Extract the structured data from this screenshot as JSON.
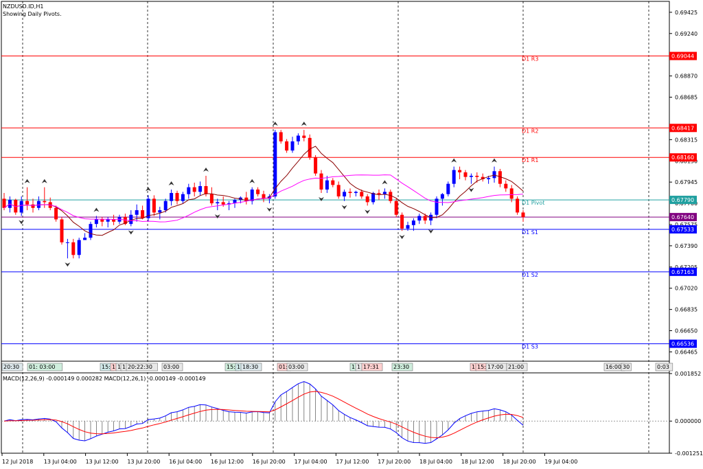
{
  "header": {
    "symbol": "NZDUSD.ID,H1",
    "subtitle": "Showing Daily Pivots."
  },
  "price_axis": {
    "ticks": [
      "0.69425",
      "0.69240",
      "0.68870",
      "0.68685",
      "0.68315",
      "0.68130",
      "0.67945",
      "0.67760",
      "0.67575",
      "0.67390",
      "0.67205",
      "0.67020",
      "0.66835",
      "0.66650",
      "0.66465"
    ]
  },
  "pivots": [
    {
      "label": "D1 R3",
      "value": "0.69044",
      "color": "#ff0000"
    },
    {
      "label": "D1 R2",
      "value": "0.68417",
      "color": "#ff0000"
    },
    {
      "label": "D1 R1",
      "value": "0.68160",
      "color": "#ff0000"
    },
    {
      "label": "D1 Pivot",
      "value": "0.67790",
      "color": "#20a0a0"
    },
    {
      "label": "D1 S1",
      "value": "0.67533",
      "color": "#0000ff"
    },
    {
      "label": "D1 S2",
      "value": "0.67163",
      "color": "#0000ff"
    },
    {
      "label": "D1 S3",
      "value": "0.66536",
      "color": "#0000ff"
    }
  ],
  "current_price": {
    "value": "0.67640",
    "color": "#800080"
  },
  "session_tags": [
    {
      "text": "20:30",
      "bg": "#dde8ec"
    },
    {
      "text": "01: 03:00",
      "bg": "#cfeedd"
    },
    {
      "text": "15:",
      "bg": "#cfe8e8"
    },
    {
      "text": "1",
      "bg": "#ffd0d0"
    },
    {
      "text": "1",
      "bg": "#e8e8e8"
    },
    {
      "text": "1",
      "bg": "#e8e8e8"
    },
    {
      "text": "20:22:30",
      "bg": "#e8e8e8"
    },
    {
      "text": "03:00",
      "bg": "#e8e8e8"
    },
    {
      "text": "15:",
      "bg": "#cfeedd"
    },
    {
      "text": "1",
      "bg": "#cfe8e8"
    },
    {
      "text": "18:30",
      "bg": "#dde8ec"
    },
    {
      "text": "01:",
      "bg": "#ffd0d0"
    },
    {
      "text": "03:00",
      "bg": "#e8e8e8"
    },
    {
      "text": "1",
      "bg": "#cfeedd"
    },
    {
      "text": "1",
      "bg": "#e8e8e8"
    },
    {
      "text": "17:31",
      "bg": "#ffd0d0"
    },
    {
      "text": "23:30",
      "bg": "#cfeedd"
    },
    {
      "text": "1",
      "bg": "#ffd0d0"
    },
    {
      "text": "15:",
      "bg": "#ffd0d0"
    },
    {
      "text": "17:00",
      "bg": "#e8e8e8"
    },
    {
      "text": "21:00",
      "bg": "#e8e8e8"
    },
    {
      "text": "16:00",
      "bg": "#e8e8e8"
    },
    {
      "text": "30",
      "bg": "#e8e8e8"
    },
    {
      "text": "0:03",
      "bg": "#e8e8e8"
    }
  ],
  "macd": {
    "label": "MACD(12,26,9) -0.000149 0.000282 MACD(12,26,1) -0.000149 -0.000149",
    "axis_ticks": [
      "0.001852",
      "0.000000",
      "-0.001251"
    ]
  },
  "time_axis": {
    "labels": [
      "12 Jul 2018",
      "13 Jul 04:00",
      "13 Jul 12:00",
      "13 Jul 20:00",
      "16 Jul 04:00",
      "16 Jul 12:00",
      "16 Jul 20:00",
      "17 Jul 04:00",
      "17 Jul 12:00",
      "17 Jul 20:00",
      "18 Jul 04:00",
      "18 Jul 12:00",
      "18 Jul 20:00",
      "19 Jul 04:00"
    ]
  },
  "colors": {
    "bull": "#0000ff",
    "bear": "#ff0000",
    "ma_fast": "#8b0000",
    "ma_slow": "#ff00ff",
    "macd_line": "#0000ff",
    "signal_line": "#ff0000",
    "grid": "#000000"
  },
  "chart_data": {
    "type": "candlestick",
    "x": [
      "12 Jul 2018",
      "13 Jul 04:00",
      "13 Jul 12:00",
      "13 Jul 20:00",
      "16 Jul 04:00",
      "16 Jul 12:00",
      "16 Jul 20:00",
      "17 Jul 04:00",
      "17 Jul 12:00",
      "17 Jul 20:00",
      "18 Jul 04:00",
      "18 Jul 12:00",
      "18 Jul 20:00",
      "19 Jul 04:00"
    ],
    "ylim": [
      0.6639,
      0.6952
    ],
    "candles": [
      [
        0.678,
        0.6785,
        0.677,
        0.6772
      ],
      [
        0.6772,
        0.6782,
        0.6768,
        0.6779
      ],
      [
        0.6779,
        0.678,
        0.6766,
        0.6768
      ],
      [
        0.6768,
        0.6782,
        0.6765,
        0.6778
      ],
      [
        0.6778,
        0.679,
        0.677,
        0.6775
      ],
      [
        0.6775,
        0.678,
        0.6768,
        0.6772
      ],
      [
        0.6772,
        0.6782,
        0.677,
        0.6778
      ],
      [
        0.6778,
        0.679,
        0.6772,
        0.6777
      ],
      [
        0.6777,
        0.6781,
        0.677,
        0.6772
      ],
      [
        0.6772,
        0.6774,
        0.676,
        0.6762
      ],
      [
        0.6762,
        0.6764,
        0.674,
        0.6742
      ],
      [
        0.6742,
        0.6745,
        0.6728,
        0.6742
      ],
      [
        0.6742,
        0.6745,
        0.6728,
        0.6731
      ],
      [
        0.6731,
        0.6746,
        0.6728,
        0.6744
      ],
      [
        0.6744,
        0.675,
        0.6745,
        0.6746
      ],
      [
        0.6746,
        0.676,
        0.6744,
        0.6758
      ],
      [
        0.6758,
        0.6765,
        0.6755,
        0.6762
      ],
      [
        0.6762,
        0.6764,
        0.6756,
        0.676
      ],
      [
        0.676,
        0.6764,
        0.6755,
        0.6762
      ],
      [
        0.6762,
        0.6766,
        0.6757,
        0.676
      ],
      [
        0.676,
        0.6766,
        0.6758,
        0.6764
      ],
      [
        0.6764,
        0.6767,
        0.6757,
        0.6758
      ],
      [
        0.6758,
        0.677,
        0.6756,
        0.6766
      ],
      [
        0.6766,
        0.6775,
        0.676,
        0.677
      ],
      [
        0.677,
        0.6774,
        0.6762,
        0.6763
      ],
      [
        0.6763,
        0.6783,
        0.676,
        0.678
      ],
      [
        0.678,
        0.6783,
        0.6765,
        0.6768
      ],
      [
        0.6768,
        0.6773,
        0.6762,
        0.677
      ],
      [
        0.677,
        0.678,
        0.6768,
        0.6778
      ],
      [
        0.6778,
        0.6788,
        0.6774,
        0.6785
      ],
      [
        0.6785,
        0.6787,
        0.6775,
        0.6778
      ],
      [
        0.6778,
        0.6786,
        0.6776,
        0.6784
      ],
      [
        0.6784,
        0.6793,
        0.678,
        0.679
      ],
      [
        0.679,
        0.6794,
        0.6782,
        0.6786
      ],
      [
        0.6786,
        0.6795,
        0.6783,
        0.6791
      ],
      [
        0.6791,
        0.68,
        0.6782,
        0.6784
      ],
      [
        0.6784,
        0.679,
        0.6774,
        0.6776
      ],
      [
        0.6776,
        0.678,
        0.677,
        0.6777
      ],
      [
        0.6777,
        0.6782,
        0.6773,
        0.6775
      ],
      [
        0.6775,
        0.6778,
        0.677,
        0.6776
      ],
      [
        0.6776,
        0.678,
        0.6772,
        0.6779
      ],
      [
        0.6779,
        0.6782,
        0.6776,
        0.6781
      ],
      [
        0.6781,
        0.6786,
        0.6775,
        0.6778
      ],
      [
        0.6778,
        0.679,
        0.6775,
        0.6788
      ],
      [
        0.6788,
        0.679,
        0.6782,
        0.6784
      ],
      [
        0.6784,
        0.6787,
        0.6777,
        0.678
      ],
      [
        0.678,
        0.6784,
        0.6776,
        0.6782
      ],
      [
        0.6782,
        0.684,
        0.678,
        0.6838
      ],
      [
        0.6838,
        0.684,
        0.6828,
        0.683
      ],
      [
        0.683,
        0.6832,
        0.682,
        0.6822
      ],
      [
        0.6822,
        0.6834,
        0.682,
        0.683
      ],
      [
        0.683,
        0.6837,
        0.6827,
        0.6835
      ],
      [
        0.6835,
        0.684,
        0.683,
        0.6833
      ],
      [
        0.6833,
        0.6836,
        0.6814,
        0.6816
      ],
      [
        0.6816,
        0.6818,
        0.68,
        0.6802
      ],
      [
        0.6802,
        0.6805,
        0.6785,
        0.6788
      ],
      [
        0.6788,
        0.68,
        0.6785,
        0.6796
      ],
      [
        0.6796,
        0.6798,
        0.679,
        0.6792
      ],
      [
        0.6792,
        0.6795,
        0.678,
        0.6782
      ],
      [
        0.6782,
        0.6788,
        0.6778,
        0.6786
      ],
      [
        0.6786,
        0.6789,
        0.6781,
        0.6785
      ],
      [
        0.6785,
        0.6787,
        0.6782,
        0.6786
      ],
      [
        0.6786,
        0.6788,
        0.678,
        0.6782
      ],
      [
        0.6782,
        0.6784,
        0.6774,
        0.6777
      ],
      [
        0.6777,
        0.6786,
        0.6775,
        0.6785
      ],
      [
        0.6785,
        0.6788,
        0.6779,
        0.6784
      ],
      [
        0.6784,
        0.6789,
        0.678,
        0.6786
      ],
      [
        0.6786,
        0.6788,
        0.6776,
        0.6778
      ],
      [
        0.6778,
        0.678,
        0.6764,
        0.6766
      ],
      [
        0.6766,
        0.6768,
        0.6752,
        0.6754
      ],
      [
        0.6754,
        0.676,
        0.6752,
        0.6757
      ],
      [
        0.6757,
        0.6763,
        0.6752,
        0.6761
      ],
      [
        0.6761,
        0.6767,
        0.6758,
        0.6765
      ],
      [
        0.6765,
        0.6767,
        0.6758,
        0.6761
      ],
      [
        0.6761,
        0.6768,
        0.6757,
        0.6766
      ],
      [
        0.6766,
        0.6782,
        0.6763,
        0.678
      ],
      [
        0.678,
        0.6785,
        0.6774,
        0.6784
      ],
      [
        0.6784,
        0.6795,
        0.6782,
        0.6793
      ],
      [
        0.6793,
        0.6808,
        0.679,
        0.6805
      ],
      [
        0.6805,
        0.6808,
        0.6797,
        0.6803
      ],
      [
        0.6803,
        0.6805,
        0.6796,
        0.6799
      ],
      [
        0.6799,
        0.6802,
        0.6793,
        0.68
      ],
      [
        0.68,
        0.6803,
        0.6794,
        0.6799
      ],
      [
        0.6799,
        0.6802,
        0.6795,
        0.6797
      ],
      [
        0.6797,
        0.68,
        0.6793,
        0.6798
      ],
      [
        0.6798,
        0.6808,
        0.6794,
        0.6804
      ],
      [
        0.6804,
        0.6806,
        0.679,
        0.6793
      ],
      [
        0.6793,
        0.6796,
        0.6786,
        0.6789
      ],
      [
        0.6789,
        0.6792,
        0.6777,
        0.678
      ],
      [
        0.678,
        0.6782,
        0.6766,
        0.6768
      ],
      [
        0.6768,
        0.677,
        0.676,
        0.6764
      ]
    ]
  }
}
